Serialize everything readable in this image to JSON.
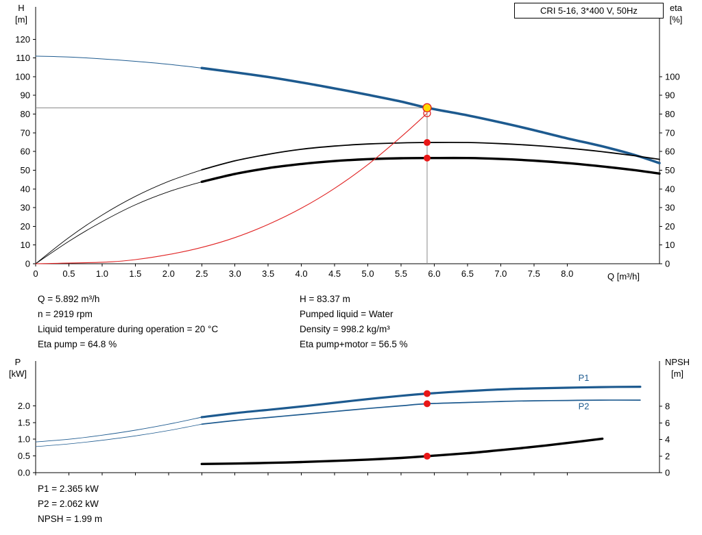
{
  "header": {
    "title": "CRI 5-16, 3*400 V, 50Hz"
  },
  "annotations": {
    "top_left": [
      "Q = 5.892 m³/h",
      "n = 2919 rpm",
      "Liquid temperature during operation = 20 °C",
      "Eta pump = 64.8 %"
    ],
    "top_right": [
      "H = 83.37 m",
      "Pumped liquid = Water",
      "Density = 998.2 kg/m³",
      "Eta pump+motor = 56.5 %"
    ],
    "bottom": [
      "P1 = 2.365 kW",
      "P2 = 2.062 kW",
      "NPSH = 1.99 m"
    ]
  },
  "colors": {
    "curve_blue": "#1d5a8f",
    "curve_red": "#e02121",
    "dot_red": "#e81717",
    "duty_yellow": "#ffd800",
    "crosshair_gray": "#8a8a8a"
  },
  "chart_data": [
    {
      "type": "line",
      "title": "CRI 5-16, 3*400 V, 50Hz",
      "x_label": "Q [m³/h]",
      "x_range": [
        0,
        9.39
      ],
      "y_left_label": [
        "H",
        "[m]"
      ],
      "y_right_label": [
        "eta",
        "[%]"
      ],
      "y_left_range": [
        0,
        137
      ],
      "y_right_range": [
        0,
        137
      ],
      "x_ticks": [
        [
          0,
          "0"
        ],
        [
          0.5,
          "0.5"
        ],
        [
          1,
          "1.0"
        ],
        [
          1.5,
          "1.5"
        ],
        [
          2,
          "2.0"
        ],
        [
          2.5,
          "2.5"
        ],
        [
          3,
          "3.0"
        ],
        [
          3.5,
          "3.5"
        ],
        [
          4,
          "4.0"
        ],
        [
          4.5,
          "4.5"
        ],
        [
          5,
          "5.0"
        ],
        [
          5.5,
          "5.5"
        ],
        [
          6,
          "6.0"
        ],
        [
          6.5,
          "6.5"
        ],
        [
          7,
          "7.0"
        ],
        [
          7.5,
          "7.5"
        ],
        [
          8,
          "8.0"
        ]
      ],
      "y_left_ticks": [
        [
          0,
          "0"
        ],
        [
          10,
          "10"
        ],
        [
          20,
          "20"
        ],
        [
          30,
          "30"
        ],
        [
          40,
          "40"
        ],
        [
          50,
          "50"
        ],
        [
          60,
          "60"
        ],
        [
          70,
          "70"
        ],
        [
          80,
          "80"
        ],
        [
          90,
          "90"
        ],
        [
          100,
          "100"
        ],
        [
          110,
          "110"
        ],
        [
          120,
          "120"
        ]
      ],
      "y_right_ticks": [
        [
          0,
          "0"
        ],
        [
          10,
          "10"
        ],
        [
          20,
          "20"
        ],
        [
          30,
          "30"
        ],
        [
          40,
          "40"
        ],
        [
          50,
          "50"
        ],
        [
          60,
          "60"
        ],
        [
          70,
          "70"
        ],
        [
          80,
          "80"
        ],
        [
          90,
          "90"
        ],
        [
          100,
          "100"
        ]
      ],
      "series": [
        {
          "name": "qh-curve-thin",
          "axis": "left",
          "color": "#1d5a8f",
          "width": 1,
          "points": [
            [
              0,
              111
            ],
            [
              0.5,
              110.5
            ],
            [
              1,
              109.5
            ],
            [
              1.5,
              108.2
            ],
            [
              2,
              106.6
            ],
            [
              2.5,
              104.6
            ]
          ]
        },
        {
          "name": "qh-curve",
          "axis": "left",
          "color": "#1d5a8f",
          "width": 3.6,
          "points": [
            [
              2.5,
              104.6
            ],
            [
              3,
              102.3
            ],
            [
              3.5,
              99.8
            ],
            [
              4,
              96.9
            ],
            [
              4.5,
              93.7
            ],
            [
              5,
              90.3
            ],
            [
              5.5,
              86.7
            ],
            [
              5.892,
              83.37
            ],
            [
              6.5,
              79.3
            ],
            [
              7,
              75.5
            ],
            [
              7.5,
              71.4
            ],
            [
              8,
              67
            ],
            [
              8.5,
              63
            ],
            [
              9,
              58.3
            ],
            [
              9.39,
              53.8
            ]
          ]
        },
        {
          "name": "eta-pump-thin",
          "axis": "right",
          "color": "#000000",
          "width": 0.9,
          "points": [
            [
              0,
              0
            ],
            [
              0.5,
              14
            ],
            [
              1,
              26
            ],
            [
              1.5,
              36
            ],
            [
              2,
              44
            ],
            [
              2.5,
              50.2
            ]
          ]
        },
        {
          "name": "eta-pump",
          "axis": "right",
          "color": "#000000",
          "width": 1.8,
          "points": [
            [
              2.5,
              50.2
            ],
            [
              3,
              55
            ],
            [
              3.5,
              58.5
            ],
            [
              4,
              61.2
            ],
            [
              4.5,
              62.9
            ],
            [
              5,
              64
            ],
            [
              5.5,
              64.6
            ],
            [
              5.892,
              64.8
            ],
            [
              6.5,
              64.8
            ],
            [
              7,
              64.2
            ],
            [
              7.5,
              63.2
            ],
            [
              8,
              61.8
            ],
            [
              8.5,
              60
            ],
            [
              9,
              57.8
            ],
            [
              9.39,
              55.8
            ]
          ]
        },
        {
          "name": "eta-pump-motor-thin",
          "axis": "right",
          "color": "#000000",
          "width": 0.9,
          "points": [
            [
              0,
              0
            ],
            [
              0.5,
              12
            ],
            [
              1,
              22.5
            ],
            [
              1.5,
              31.5
            ],
            [
              2,
              38.5
            ],
            [
              2.5,
              43.8
            ]
          ]
        },
        {
          "name": "eta-pump-motor",
          "axis": "right",
          "color": "#000000",
          "width": 3.4,
          "points": [
            [
              2.5,
              43.8
            ],
            [
              3,
              48
            ],
            [
              3.5,
              51.1
            ],
            [
              4,
              53.3
            ],
            [
              4.5,
              54.9
            ],
            [
              5,
              55.9
            ],
            [
              5.5,
              56.4
            ],
            [
              5.892,
              56.5
            ],
            [
              6.5,
              56.5
            ],
            [
              7,
              56
            ],
            [
              7.5,
              55.1
            ],
            [
              8,
              53.8
            ],
            [
              8.5,
              52.1
            ],
            [
              9,
              50.1
            ],
            [
              9.39,
              48.2
            ]
          ]
        },
        {
          "name": "system-curve",
          "axis": "left",
          "color": "#e02121",
          "width": 1.1,
          "points": [
            [
              0,
              0
            ],
            [
              1,
              0.8
            ],
            [
              1.5,
              2.2
            ],
            [
              2,
              4.9
            ],
            [
              2.5,
              8.7
            ],
            [
              3,
              14
            ],
            [
              3.5,
              21
            ],
            [
              4,
              29.7
            ],
            [
              4.5,
              40.3
            ],
            [
              5,
              53
            ],
            [
              5.5,
              67.8
            ],
            [
              5.892,
              80.4
            ]
          ]
        }
      ],
      "crosshair": {
        "x": 5.892,
        "y": 83.37,
        "color": "#8a8a8a"
      },
      "markers": [
        {
          "name": "duty-open-circle",
          "x": 5.892,
          "v": 80.4,
          "axis": "left",
          "r": 5,
          "fill": "none",
          "stroke": "#e02121",
          "sw": 1.3
        },
        {
          "name": "eta-pump-point",
          "x": 5.892,
          "v": 64.8,
          "axis": "right",
          "r": 5,
          "fill": "#e81717",
          "stroke": "none",
          "sw": 0
        },
        {
          "name": "eta-pump-motor-point",
          "x": 5.892,
          "v": 56.5,
          "axis": "right",
          "r": 5,
          "fill": "#e81717",
          "stroke": "none",
          "sw": 0
        },
        {
          "name": "duty-point",
          "x": 5.892,
          "v": 83.37,
          "axis": "left",
          "r": 6,
          "fill": "#ffd800",
          "stroke": "#e02121",
          "sw": 1.4
        }
      ],
      "labels": []
    },
    {
      "type": "line",
      "title": "",
      "x_label": "",
      "x_range": [
        0,
        9.39
      ],
      "y_left_label": [
        "P",
        "[kW]"
      ],
      "y_right_label": [
        "NPSH",
        "[m]"
      ],
      "y_left_range": [
        0,
        3.34
      ],
      "y_right_range": [
        0,
        13.5
      ],
      "x_ticks": [
        [
          0,
          ""
        ],
        [
          0.5,
          ""
        ],
        [
          1,
          ""
        ],
        [
          1.5,
          ""
        ],
        [
          2,
          ""
        ],
        [
          2.5,
          ""
        ],
        [
          3,
          ""
        ],
        [
          3.5,
          ""
        ],
        [
          4,
          ""
        ],
        [
          4.5,
          ""
        ],
        [
          5,
          ""
        ],
        [
          5.5,
          ""
        ],
        [
          6,
          ""
        ],
        [
          6.5,
          ""
        ],
        [
          7,
          ""
        ],
        [
          7.5,
          ""
        ],
        [
          8,
          ""
        ]
      ],
      "y_left_ticks": [
        [
          0,
          "0.0"
        ],
        [
          0.5,
          "0.5"
        ],
        [
          1,
          "1.0"
        ],
        [
          1.5,
          "1.5"
        ],
        [
          2,
          "2.0"
        ]
      ],
      "y_right_ticks": [
        [
          0,
          "0"
        ],
        [
          2,
          "2"
        ],
        [
          4,
          "4"
        ],
        [
          6,
          "6"
        ],
        [
          8,
          "8"
        ]
      ],
      "series": [
        {
          "name": "p1-thin",
          "axis": "left",
          "color": "#1d5a8f",
          "width": 0.9,
          "points": [
            [
              0,
              0.92
            ],
            [
              0.5,
              1.0
            ],
            [
              1,
              1.12
            ],
            [
              1.5,
              1.27
            ],
            [
              2,
              1.45
            ],
            [
              2.5,
              1.66
            ]
          ]
        },
        {
          "name": "p1",
          "axis": "left",
          "color": "#1d5a8f",
          "width": 3.2,
          "points": [
            [
              2.5,
              1.66
            ],
            [
              3,
              1.78
            ],
            [
              3.5,
              1.88
            ],
            [
              4,
              1.98
            ],
            [
              4.5,
              2.09
            ],
            [
              5,
              2.2
            ],
            [
              5.5,
              2.3
            ],
            [
              5.892,
              2.365
            ],
            [
              6.5,
              2.44
            ],
            [
              7,
              2.49
            ],
            [
              7.5,
              2.52
            ],
            [
              8,
              2.54
            ],
            [
              8.5,
              2.56
            ],
            [
              9.1,
              2.57
            ]
          ]
        },
        {
          "name": "p2-thin",
          "axis": "left",
          "color": "#1d5a8f",
          "width": 0.8,
          "points": [
            [
              0,
              0.78
            ],
            [
              0.5,
              0.86
            ],
            [
              1,
              0.97
            ],
            [
              1.5,
              1.1
            ],
            [
              2,
              1.26
            ],
            [
              2.5,
              1.45
            ]
          ]
        },
        {
          "name": "p2",
          "axis": "left",
          "color": "#1d5a8f",
          "width": 1.7,
          "points": [
            [
              2.5,
              1.45
            ],
            [
              3,
              1.56
            ],
            [
              3.5,
              1.65
            ],
            [
              4,
              1.74
            ],
            [
              4.5,
              1.83
            ],
            [
              5,
              1.92
            ],
            [
              5.5,
              2.0
            ],
            [
              5.892,
              2.062
            ],
            [
              6.5,
              2.1
            ],
            [
              7,
              2.13
            ],
            [
              7.5,
              2.15
            ],
            [
              8,
              2.16
            ],
            [
              8.5,
              2.17
            ],
            [
              9.1,
              2.17
            ]
          ]
        },
        {
          "name": "npsh",
          "axis": "right",
          "color": "#000000",
          "width": 3.4,
          "points": [
            [
              2.5,
              1.05
            ],
            [
              3,
              1.1
            ],
            [
              3.5,
              1.18
            ],
            [
              4,
              1.28
            ],
            [
              4.5,
              1.42
            ],
            [
              5,
              1.58
            ],
            [
              5.5,
              1.78
            ],
            [
              5.892,
              1.99
            ],
            [
              6.5,
              2.35
            ],
            [
              7,
              2.72
            ],
            [
              7.5,
              3.12
            ],
            [
              8,
              3.58
            ],
            [
              8.53,
              4.1
            ]
          ]
        }
      ],
      "crosshair": null,
      "markers": [
        {
          "name": "p1-point",
          "x": 5.892,
          "v": 2.365,
          "axis": "left",
          "r": 5,
          "fill": "#e81717",
          "stroke": "none",
          "sw": 0
        },
        {
          "name": "p2-point",
          "x": 5.892,
          "v": 2.062,
          "axis": "left",
          "r": 5,
          "fill": "#e81717",
          "stroke": "none",
          "sw": 0
        },
        {
          "name": "npsh-point",
          "x": 5.892,
          "v": 1.99,
          "axis": "right",
          "r": 5,
          "fill": "#e81717",
          "stroke": "none",
          "sw": 0
        }
      ],
      "labels": [
        {
          "text": "P1",
          "x": 8.25,
          "v": 2.75,
          "axis": "left",
          "color": "#1d5a8f"
        },
        {
          "text": "P2",
          "x": 8.25,
          "v": 1.9,
          "axis": "left",
          "color": "#1d5a8f"
        }
      ]
    }
  ]
}
